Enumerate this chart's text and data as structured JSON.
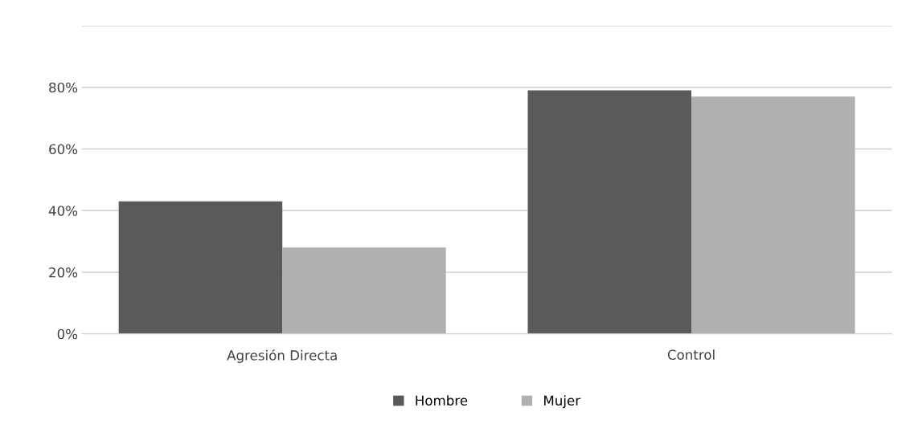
{
  "chart_data": {
    "type": "bar",
    "categories": [
      "Agresión Directa",
      "Control"
    ],
    "series": [
      {
        "name": "Hombre",
        "color": "#5a5a5a",
        "values": [
          43,
          79
        ]
      },
      {
        "name": "Mujer",
        "color": "#b0b0b0",
        "values": [
          28,
          77
        ]
      }
    ],
    "ylim": [
      0,
      100
    ],
    "yticks": [
      {
        "value": 0,
        "label": "0%"
      },
      {
        "value": 20,
        "label": "20%"
      },
      {
        "value": 40,
        "label": "40%"
      },
      {
        "value": 60,
        "label": "60%"
      },
      {
        "value": 80,
        "label": "80%"
      },
      {
        "value": 100,
        "label": null
      }
    ],
    "grid": "y",
    "legend": "bottom"
  }
}
